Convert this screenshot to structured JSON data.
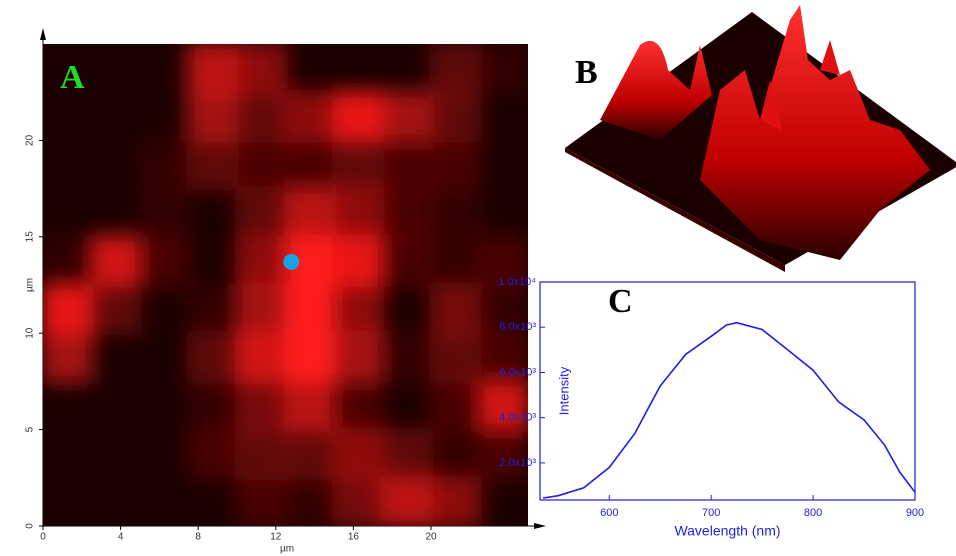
{
  "chart_data": [
    {
      "type": "heatmap",
      "panel_label": "A",
      "xlabel": "µm",
      "ylabel": "µm",
      "xlim": [
        0,
        25
      ],
      "ylim": [
        0,
        25
      ],
      "xticks": [
        0,
        4,
        8,
        12,
        16,
        20
      ],
      "yticks": [
        0,
        5,
        10,
        15,
        20
      ],
      "z": [
        [
          0,
          0,
          0,
          0.7,
          0.5,
          0,
          0,
          0,
          0.3,
          0.1
        ],
        [
          0,
          0,
          0,
          0.6,
          0.3,
          0.5,
          0.9,
          0.6,
          0.3,
          0
        ],
        [
          0,
          0,
          0.1,
          0.3,
          0.2,
          0.2,
          0.3,
          0.2,
          0.2,
          0
        ],
        [
          0,
          0,
          0.1,
          0,
          0.3,
          0.7,
          0.5,
          0.2,
          0.1,
          0
        ],
        [
          0.1,
          0.8,
          0.2,
          0,
          0.5,
          1,
          0.9,
          0.2,
          0.1,
          0.2
        ],
        [
          0.9,
          0.3,
          0,
          0.1,
          0.6,
          1,
          0.5,
          0,
          0.4,
          0.1
        ],
        [
          0.6,
          0,
          0,
          0.3,
          0.8,
          1,
          0.6,
          0.1,
          0.3,
          0.2
        ],
        [
          0,
          0,
          0,
          0.1,
          0.4,
          0.7,
          0.2,
          0,
          0.2,
          0.8
        ],
        [
          0,
          0,
          0,
          0.2,
          0.3,
          0.3,
          0.5,
          0.3,
          0.1,
          0.2
        ],
        [
          0,
          0,
          0,
          0,
          0.2,
          0.1,
          0.4,
          0.7,
          0.5,
          0
        ]
      ],
      "color": "#ff1a1a",
      "marker": {
        "x": 12.8,
        "y": 13.7,
        "color": "#1aa3e0"
      }
    },
    {
      "type": "line",
      "panel_label": "C",
      "xlabel": "Wavelength (nm)",
      "ylabel": "Intensity",
      "xlim": [
        532,
        900
      ],
      "ylim": [
        360,
        10000
      ],
      "xticks": [
        600,
        700,
        800,
        900
      ],
      "yticks": [
        {
          "value": 2000,
          "label": "2.0x10³"
        },
        {
          "value": 4000,
          "label": "4.0x10³"
        },
        {
          "value": 6000,
          "label": "6.0x10³"
        },
        {
          "value": 8000,
          "label": "8.0x10³"
        },
        {
          "value": 10000,
          "label": "1.0x10⁴"
        }
      ],
      "x": [
        535,
        550,
        575,
        600,
        625,
        650,
        675,
        700,
        715,
        725,
        750,
        775,
        800,
        825,
        850,
        870,
        885,
        900
      ],
      "series": [
        {
          "color": "#1f1fe0",
          "values": [
            450,
            550,
            900,
            1800,
            3300,
            5400,
            6800,
            7600,
            8100,
            8200,
            7900,
            7000,
            6100,
            4700,
            3900,
            2800,
            1600,
            700
          ]
        }
      ]
    },
    {
      "type": "surface",
      "panel_label": "B"
    }
  ]
}
